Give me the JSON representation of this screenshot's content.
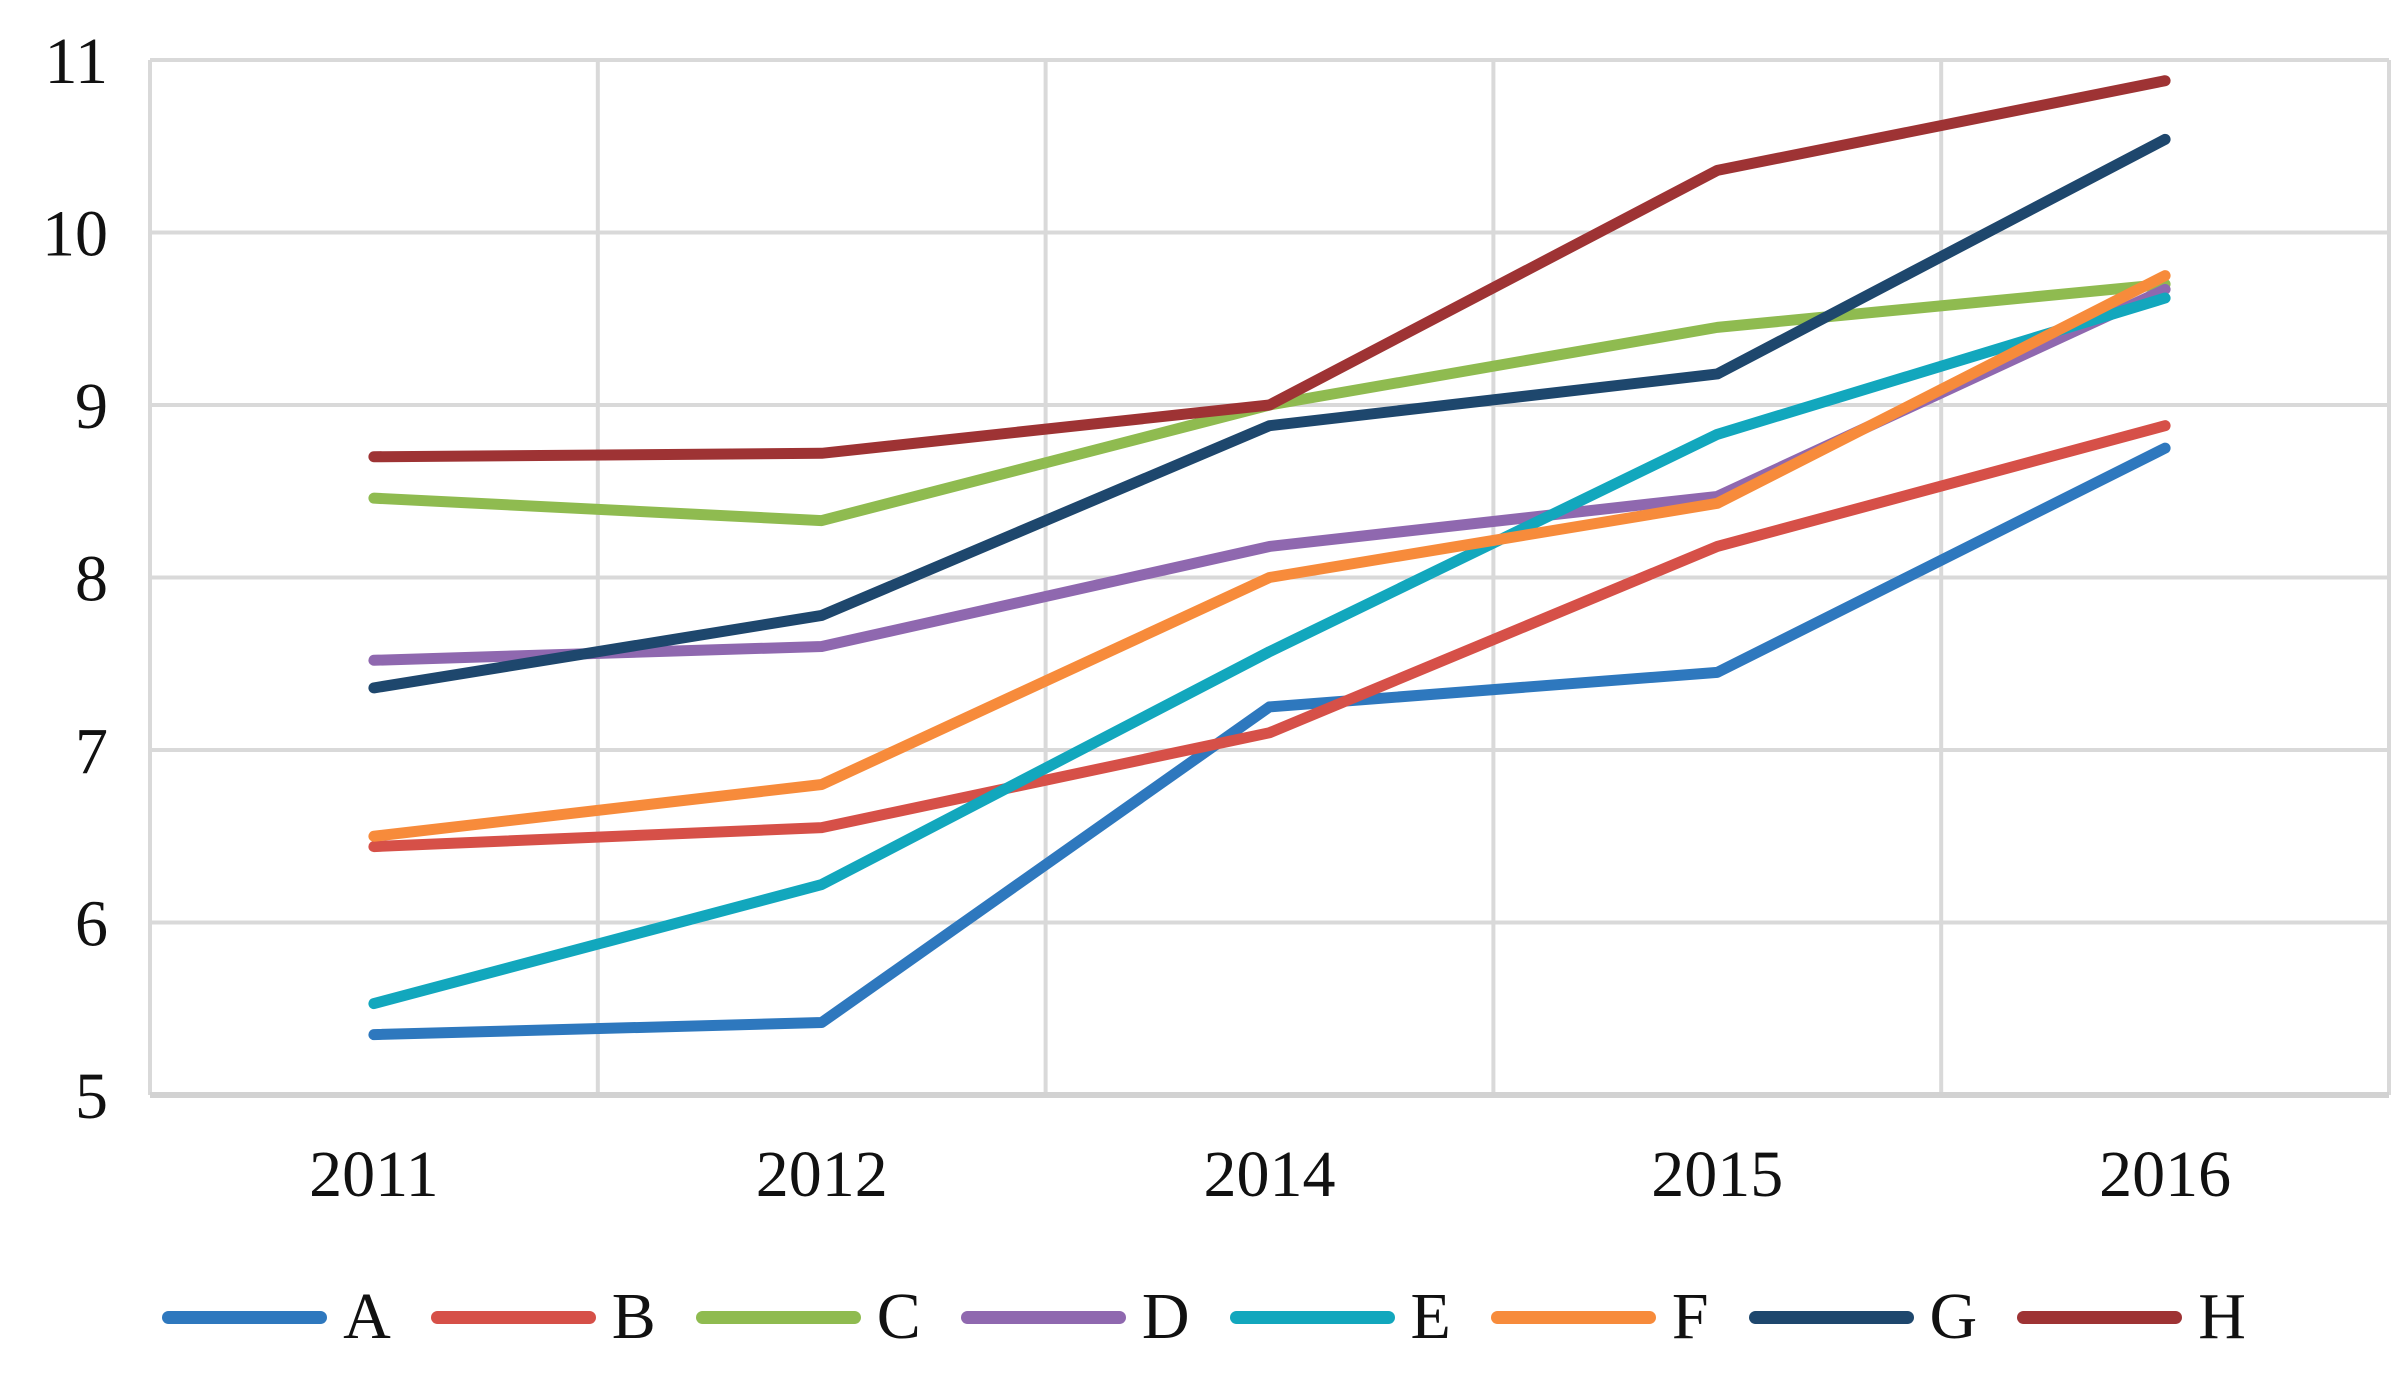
{
  "chart_data": {
    "type": "line",
    "title": "",
    "xlabel": "",
    "ylabel": "",
    "categories": [
      "2011",
      "2012",
      "2014",
      "2015",
      "2016"
    ],
    "series": [
      {
        "name": "A",
        "color": "#2E78BE",
        "values": [
          5.35,
          5.42,
          7.25,
          7.45,
          8.75
        ]
      },
      {
        "name": "B",
        "color": "#D65048",
        "values": [
          6.44,
          6.55,
          7.1,
          8.18,
          8.88
        ]
      },
      {
        "name": "C",
        "color": "#8FBB50",
        "values": [
          8.46,
          8.33,
          9.0,
          9.45,
          9.7
        ]
      },
      {
        "name": "D",
        "color": "#8F68AF",
        "values": [
          7.52,
          7.6,
          8.18,
          8.47,
          9.67
        ]
      },
      {
        "name": "E",
        "color": "#12A7BD",
        "values": [
          5.53,
          6.22,
          7.57,
          8.83,
          9.62
        ]
      },
      {
        "name": "F",
        "color": "#F78B3B",
        "values": [
          6.5,
          6.8,
          8.0,
          8.43,
          9.75
        ]
      },
      {
        "name": "G",
        "color": "#1E476D",
        "values": [
          7.36,
          7.78,
          8.88,
          9.18,
          10.54
        ]
      },
      {
        "name": "H",
        "color": "#9E3334",
        "values": [
          8.7,
          8.72,
          9.0,
          10.36,
          10.88
        ]
      }
    ],
    "ylim": [
      5,
      11
    ],
    "yticks": [
      5,
      6,
      7,
      8,
      9,
      10,
      11
    ],
    "grid": true,
    "grid_color": "#D9D9D9",
    "axis_line_color": "#D2D2D2",
    "tick_label_color": "#111111",
    "line_width": 11,
    "legend_position": "bottom"
  }
}
